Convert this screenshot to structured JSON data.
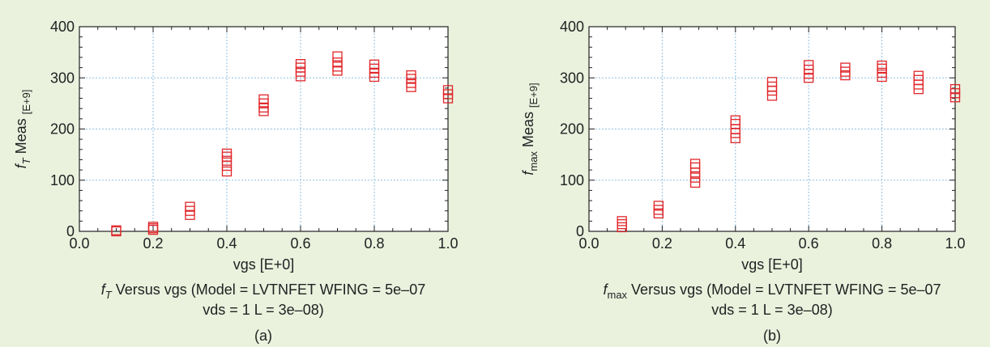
{
  "figure": {
    "background": "#eaf2de",
    "grid_color": "#8fbfe0",
    "marker_color": "#e0262a"
  },
  "chart_data": [
    {
      "type": "scatter",
      "panel_label": "(a)",
      "ylabel": {
        "base": "f",
        "sub": "T",
        "rest": " Meas ",
        "unit": "[E+9]"
      },
      "xlabel": "vgs [E+0]",
      "caption": {
        "symbol": "f",
        "symbol_sub": "T",
        "line1_rest": "  Versus vgs (Model = LVTNFET WFING = 5e–07",
        "line2": "vds = 1 L = 3e–08)"
      },
      "xlim": [
        0.0,
        1.0
      ],
      "ylim": [
        0,
        400
      ],
      "xticks": [
        "0.0",
        "0.2",
        "0.4",
        "0.6",
        "0.8",
        "1.0"
      ],
      "xtick_values": [
        0.0,
        0.2,
        0.4,
        0.6,
        0.8,
        1.0
      ],
      "yticks": [
        "0",
        "100",
        "200",
        "300",
        "400"
      ],
      "ytick_values": [
        0,
        100,
        200,
        300,
        400
      ],
      "grid": true,
      "marker": "open-square",
      "points": [
        {
          "x": 0.1,
          "y": 0
        },
        {
          "x": 0.1,
          "y": 2
        },
        {
          "x": 0.2,
          "y": 3
        },
        {
          "x": 0.2,
          "y": 6
        },
        {
          "x": 0.2,
          "y": 9
        },
        {
          "x": 0.3,
          "y": 32
        },
        {
          "x": 0.3,
          "y": 40
        },
        {
          "x": 0.3,
          "y": 48
        },
        {
          "x": 0.4,
          "y": 117
        },
        {
          "x": 0.4,
          "y": 128
        },
        {
          "x": 0.4,
          "y": 138
        },
        {
          "x": 0.4,
          "y": 146
        },
        {
          "x": 0.4,
          "y": 152
        },
        {
          "x": 0.5,
          "y": 235
        },
        {
          "x": 0.5,
          "y": 242
        },
        {
          "x": 0.5,
          "y": 250
        },
        {
          "x": 0.5,
          "y": 258
        },
        {
          "x": 0.6,
          "y": 303
        },
        {
          "x": 0.6,
          "y": 312
        },
        {
          "x": 0.6,
          "y": 320
        },
        {
          "x": 0.6,
          "y": 327
        },
        {
          "x": 0.7,
          "y": 314
        },
        {
          "x": 0.7,
          "y": 322
        },
        {
          "x": 0.7,
          "y": 330
        },
        {
          "x": 0.7,
          "y": 342
        },
        {
          "x": 0.8,
          "y": 302
        },
        {
          "x": 0.8,
          "y": 310
        },
        {
          "x": 0.8,
          "y": 318
        },
        {
          "x": 0.8,
          "y": 326
        },
        {
          "x": 0.9,
          "y": 282
        },
        {
          "x": 0.9,
          "y": 290
        },
        {
          "x": 0.9,
          "y": 298
        },
        {
          "x": 0.9,
          "y": 305
        },
        {
          "x": 1.0,
          "y": 260
        },
        {
          "x": 1.0,
          "y": 268
        },
        {
          "x": 1.0,
          "y": 276
        }
      ]
    },
    {
      "type": "scatter",
      "panel_label": "(b)",
      "ylabel": {
        "base": "f",
        "sub": "max",
        "rest": " Meas ",
        "unit": "[E+9]"
      },
      "xlabel": "vgs [E+0]",
      "caption": {
        "symbol": "f",
        "symbol_sub": "max",
        "line1_rest": " Versus vgs (Model = LVTNFET WFING = 5e–07",
        "line2": "vds = 1 L = 3e–08)"
      },
      "xlim": [
        0.0,
        1.0
      ],
      "ylim": [
        0,
        400
      ],
      "xticks": [
        "0.0",
        "0.2",
        "0.4",
        "0.6",
        "0.8",
        "1.0"
      ],
      "xtick_values": [
        0.0,
        0.2,
        0.4,
        0.6,
        0.8,
        1.0
      ],
      "yticks": [
        "0",
        "100",
        "200",
        "300",
        "400"
      ],
      "ytick_values": [
        0,
        100,
        200,
        300,
        400
      ],
      "grid": true,
      "marker": "open-square",
      "points": [
        {
          "x": 0.09,
          "y": 8
        },
        {
          "x": 0.09,
          "y": 14
        },
        {
          "x": 0.09,
          "y": 20
        },
        {
          "x": 0.19,
          "y": 35
        },
        {
          "x": 0.19,
          "y": 42
        },
        {
          "x": 0.19,
          "y": 50
        },
        {
          "x": 0.29,
          "y": 95
        },
        {
          "x": 0.29,
          "y": 105
        },
        {
          "x": 0.29,
          "y": 115
        },
        {
          "x": 0.29,
          "y": 125
        },
        {
          "x": 0.29,
          "y": 132
        },
        {
          "x": 0.4,
          "y": 182
        },
        {
          "x": 0.4,
          "y": 192
        },
        {
          "x": 0.4,
          "y": 200
        },
        {
          "x": 0.4,
          "y": 210
        },
        {
          "x": 0.4,
          "y": 217
        },
        {
          "x": 0.5,
          "y": 265
        },
        {
          "x": 0.5,
          "y": 275
        },
        {
          "x": 0.5,
          "y": 283
        },
        {
          "x": 0.5,
          "y": 292
        },
        {
          "x": 0.6,
          "y": 300
        },
        {
          "x": 0.6,
          "y": 308
        },
        {
          "x": 0.6,
          "y": 316
        },
        {
          "x": 0.6,
          "y": 325
        },
        {
          "x": 0.7,
          "y": 305
        },
        {
          "x": 0.7,
          "y": 312
        },
        {
          "x": 0.7,
          "y": 320
        },
        {
          "x": 0.8,
          "y": 302
        },
        {
          "x": 0.8,
          "y": 310
        },
        {
          "x": 0.8,
          "y": 318
        },
        {
          "x": 0.8,
          "y": 324
        },
        {
          "x": 0.9,
          "y": 278
        },
        {
          "x": 0.9,
          "y": 287
        },
        {
          "x": 0.9,
          "y": 296
        },
        {
          "x": 0.9,
          "y": 304
        },
        {
          "x": 1.0,
          "y": 262
        },
        {
          "x": 1.0,
          "y": 270
        },
        {
          "x": 1.0,
          "y": 278
        }
      ]
    }
  ]
}
